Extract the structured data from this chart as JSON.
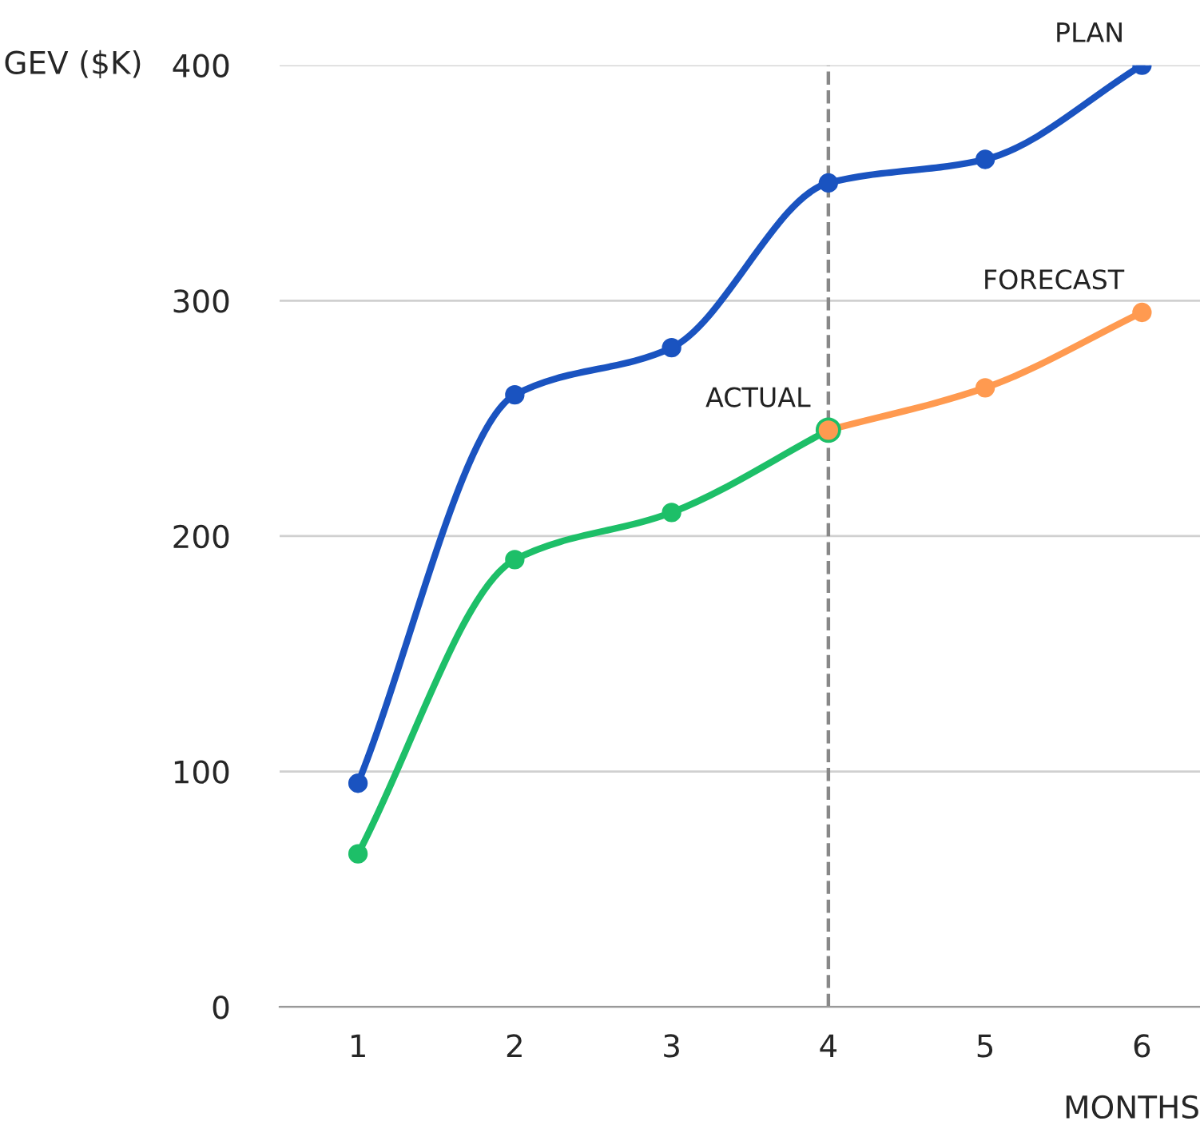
{
  "chart_data": {
    "type": "line",
    "xlabel": "MONTHS",
    "ylabel": "GEV ($K)",
    "x": [
      1,
      2,
      3,
      4,
      5,
      6
    ],
    "series": [
      {
        "name": "PLAN",
        "color": "#1a53c0",
        "values": [
          95,
          260,
          280,
          350,
          360,
          400
        ]
      },
      {
        "name": "ACTUAL",
        "color": "#1dbf68",
        "values": [
          65,
          190,
          210,
          245,
          null,
          null
        ]
      },
      {
        "name": "FORECAST",
        "color": "#ff9a50",
        "values": [
          null,
          null,
          null,
          245,
          263,
          295
        ]
      }
    ],
    "xlim": [
      0.5,
      6.37
    ],
    "xticks": [
      1,
      2,
      3,
      4,
      5,
      6
    ],
    "ylim": [
      0,
      400
    ],
    "yticks": [
      0,
      100,
      200,
      300,
      400
    ],
    "ref_lines": [
      {
        "axis": "x",
        "value": 4,
        "color": "#888888",
        "line_style": "dashed"
      }
    ],
    "grid": "y",
    "marker": "circle",
    "line_style": "solid",
    "legend": false
  }
}
